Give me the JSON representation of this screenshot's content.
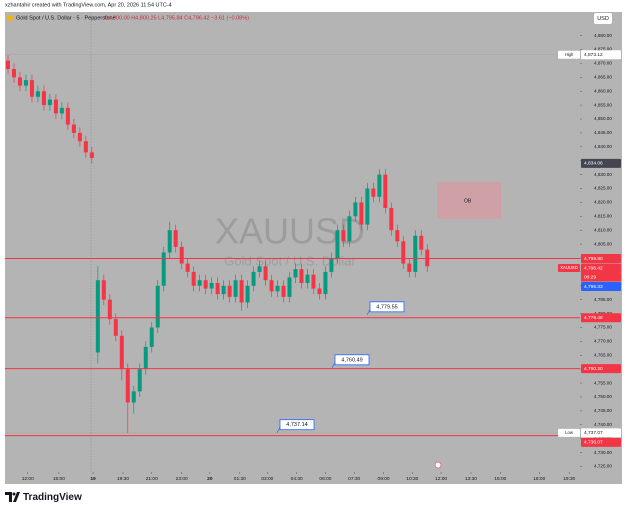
{
  "header": {
    "author_line": "xzhantahir created with TradingView.com, Apr 20, 2026 11:54 UTC-4",
    "currency": "USD"
  },
  "chart_data": {
    "type": "candlestick",
    "title": "Gold Spot / U.S. Dollar · 5 · Pepperstone",
    "ohlc_text": "O4,800.00 H4,800.25 L4,795.84 C4,796.42 −3.61 (−0.08%)",
    "watermark": "XAUUSD",
    "watermark_sub": "Gold Spot / U.S. Dollar",
    "x": [
      0,
      1,
      2,
      3,
      4,
      5,
      6,
      7,
      8,
      9,
      10,
      11,
      12,
      13,
      14,
      15,
      16,
      17,
      18,
      19,
      20,
      21,
      22,
      23,
      24,
      25,
      26,
      27,
      28,
      29,
      30,
      31,
      32,
      33,
      34,
      35,
      36,
      37,
      38,
      39,
      40,
      41,
      42,
      43,
      44,
      45,
      46,
      47,
      48,
      49,
      50,
      51,
      52,
      53,
      54,
      55,
      56,
      57,
      58,
      59,
      60,
      61,
      62,
      63,
      64,
      65,
      66,
      67,
      68,
      69,
      70
    ],
    "open": [
      4871,
      4868,
      4865,
      4862,
      4864,
      4858,
      4860,
      4855,
      4857,
      4852,
      4854,
      4848,
      4845,
      4842,
      4838,
      4766,
      4792,
      4785,
      4778,
      4772,
      4760,
      4748,
      4752,
      4760,
      4768,
      4775,
      4790,
      4802,
      4810,
      4804,
      4798,
      4795,
      4790,
      4792,
      4789,
      4791,
      4787,
      4790,
      4786,
      4792,
      4784,
      4790,
      4795,
      4797,
      4792,
      4788,
      4790,
      4786,
      4793,
      4796,
      4791,
      4794,
      4789,
      4787,
      4795,
      4800,
      4810,
      4806,
      4815,
      4820,
      4812,
      4825,
      4822,
      4830,
      4818,
      4810,
      4806,
      4798,
      4795,
      4808,
      4803
    ],
    "high": [
      4873,
      4870,
      4867,
      4866,
      4866,
      4862,
      4862,
      4859,
      4859,
      4856,
      4856,
      4850,
      4847,
      4844,
      4840,
      4797,
      4794,
      4787,
      4780,
      4774,
      4762,
      4754,
      4762,
      4770,
      4777,
      4792,
      4804,
      4813,
      4812,
      4806,
      4800,
      4797,
      4794,
      4794,
      4793,
      4793,
      4792,
      4792,
      4794,
      4794,
      4792,
      4797,
      4799,
      4799,
      4794,
      4792,
      4792,
      4795,
      4798,
      4798,
      4796,
      4796,
      4791,
      4797,
      4802,
      4812,
      4812,
      4817,
      4822,
      4822,
      4827,
      4827,
      4832,
      4832,
      4820,
      4812,
      4808,
      4800,
      4810,
      4810,
      4805
    ],
    "low": [
      4866,
      4863,
      4860,
      4860,
      4856,
      4856,
      4853,
      4853,
      4850,
      4850,
      4846,
      4843,
      4840,
      4836,
      4834,
      4762,
      4783,
      4776,
      4770,
      4756,
      4737,
      4744,
      4750,
      4758,
      4766,
      4773,
      4788,
      4800,
      4802,
      4796,
      4793,
      4788,
      4788,
      4787,
      4787,
      4785,
      4785,
      4784,
      4784,
      4781,
      4782,
      4788,
      4793,
      4790,
      4786,
      4786,
      4784,
      4784,
      4791,
      4789,
      4789,
      4787,
      4785,
      4785,
      4793,
      4798,
      4804,
      4804,
      4813,
      4810,
      4810,
      4820,
      4820,
      4816,
      4808,
      4804,
      4796,
      4793,
      4793,
      4801,
      4795
    ],
    "close": [
      4868,
      4865,
      4862,
      4864,
      4858,
      4860,
      4855,
      4857,
      4852,
      4854,
      4848,
      4845,
      4842,
      4838,
      4836,
      4792,
      4785,
      4778,
      4772,
      4760,
      4748,
      4752,
      4760,
      4768,
      4775,
      4790,
      4802,
      4810,
      4804,
      4798,
      4795,
      4790,
      4792,
      4789,
      4791,
      4787,
      4790,
      4786,
      4792,
      4784,
      4790,
      4795,
      4797,
      4792,
      4788,
      4790,
      4786,
      4793,
      4796,
      4791,
      4794,
      4789,
      4787,
      4795,
      4800,
      4810,
      4806,
      4815,
      4820,
      4812,
      4825,
      4822,
      4830,
      4818,
      4810,
      4806,
      4798,
      4795,
      4808,
      4803,
      4797
    ],
    "up_color": "#089981",
    "down_color": "#f23645",
    "xlim": [
      -0.5,
      95.5
    ],
    "xticks": [
      {
        "value": 3.3,
        "label": "12:00"
      },
      {
        "value": 8.5,
        "label": "15:00"
      },
      {
        "value": 14.2,
        "label": "19"
      },
      {
        "value": 19.2,
        "label": "19:30"
      },
      {
        "value": 24,
        "label": "21:00"
      },
      {
        "value": 29,
        "label": "23:00"
      },
      {
        "value": 33.7,
        "label": "20"
      },
      {
        "value": 38.7,
        "label": "01:30"
      },
      {
        "value": 43.3,
        "label": "03:00"
      },
      {
        "value": 48.2,
        "label": "04:30"
      },
      {
        "value": 53,
        "label": "06:00"
      },
      {
        "value": 57.8,
        "label": "07:30"
      },
      {
        "value": 62.7,
        "label": "09:00"
      },
      {
        "value": 67.5,
        "label": "10:30"
      },
      {
        "value": 72.3,
        "label": "12:00"
      },
      {
        "value": 77.3,
        "label": "13:30"
      },
      {
        "value": 82.2,
        "label": "15:00"
      },
      {
        "value": 88.7,
        "label": "18:00"
      },
      {
        "value": 93.7,
        "label": "19:30"
      }
    ],
    "ylim": [
      4723,
      4888.5
    ],
    "yticks": [
      {
        "value": 4725,
        "label": "4,725.00"
      },
      {
        "value": 4730,
        "label": "4,730.00"
      },
      {
        "value": 4735,
        "label": "4,735.00"
      },
      {
        "value": 4740,
        "label": "4,740.00"
      },
      {
        "value": 4745,
        "label": "4,745.00"
      },
      {
        "value": 4750,
        "label": "4,750.00"
      },
      {
        "value": 4755,
        "label": "4,755.00"
      },
      {
        "value": 4760,
        "label": "4,760.00"
      },
      {
        "value": 4765,
        "label": "4,765.00"
      },
      {
        "value": 4770,
        "label": "4,770.00"
      },
      {
        "value": 4775,
        "label": "4,775.00"
      },
      {
        "value": 4780,
        "label": "4,780.00"
      },
      {
        "value": 4785,
        "label": "4,785.00"
      },
      {
        "value": 4790,
        "label": "4,790.00"
      },
      {
        "value": 4795,
        "label": "4,795.00"
      },
      {
        "value": 4800,
        "label": "4,800.00"
      },
      {
        "value": 4805,
        "label": "4,805.00"
      },
      {
        "value": 4810,
        "label": "4,810.00"
      },
      {
        "value": 4815,
        "label": "4,815.00"
      },
      {
        "value": 4820,
        "label": "4,820.00"
      },
      {
        "value": 4825,
        "label": "4,825.00"
      },
      {
        "value": 4830,
        "label": "4,830.00"
      },
      {
        "value": 4835,
        "label": "4,835.00"
      },
      {
        "value": 4840,
        "label": "4,840.00"
      },
      {
        "value": 4845,
        "label": "4,845.00"
      },
      {
        "value": 4850,
        "label": "4,850.00"
      },
      {
        "value": 4855,
        "label": "4,855.00"
      },
      {
        "value": 4860,
        "label": "4,860.00"
      },
      {
        "value": 4865,
        "label": "4,865.00"
      },
      {
        "value": 4870,
        "label": "4,870.00"
      },
      {
        "value": 4875,
        "label": "4,875.00"
      },
      {
        "value": 4880,
        "label": "4,880.00"
      }
    ],
    "level_color": "#f23645",
    "levels": [
      {
        "value": 4799.8,
        "label": "4,799.80"
      },
      {
        "value": 4778.48,
        "label": "4,778.48"
      },
      {
        "value": 4760.2,
        "label": "4,760.20"
      },
      {
        "value": 4736.07,
        "label": "4,736.07"
      }
    ],
    "callouts": [
      {
        "value": 4779.55,
        "label": "4,779.55"
      },
      {
        "value": 4760.49,
        "label": "4,760.49"
      },
      {
        "value": 4737.14,
        "label": "4,737.14"
      }
    ],
    "tags": [
      {
        "prefix": "High",
        "value": 4873.12,
        "label": "4,873.12",
        "color": "#ffffff"
      },
      {
        "value": 4834.06,
        "label": "4,834.06",
        "color": "#434651"
      },
      {
        "prefix": "XAUUSD",
        "value": 4796.42,
        "label": "4,796.42",
        "sub": "00:29",
        "color": "#f23645"
      },
      {
        "value": 4796.33,
        "label": "4,796.33",
        "color": "#2962ff"
      },
      {
        "prefix": "Low",
        "value": 4737.07,
        "label": "4,737.07",
        "color": "#ffffff"
      }
    ],
    "zone": {
      "label": "OB"
    }
  },
  "footer": {
    "brand": "TradingView"
  }
}
